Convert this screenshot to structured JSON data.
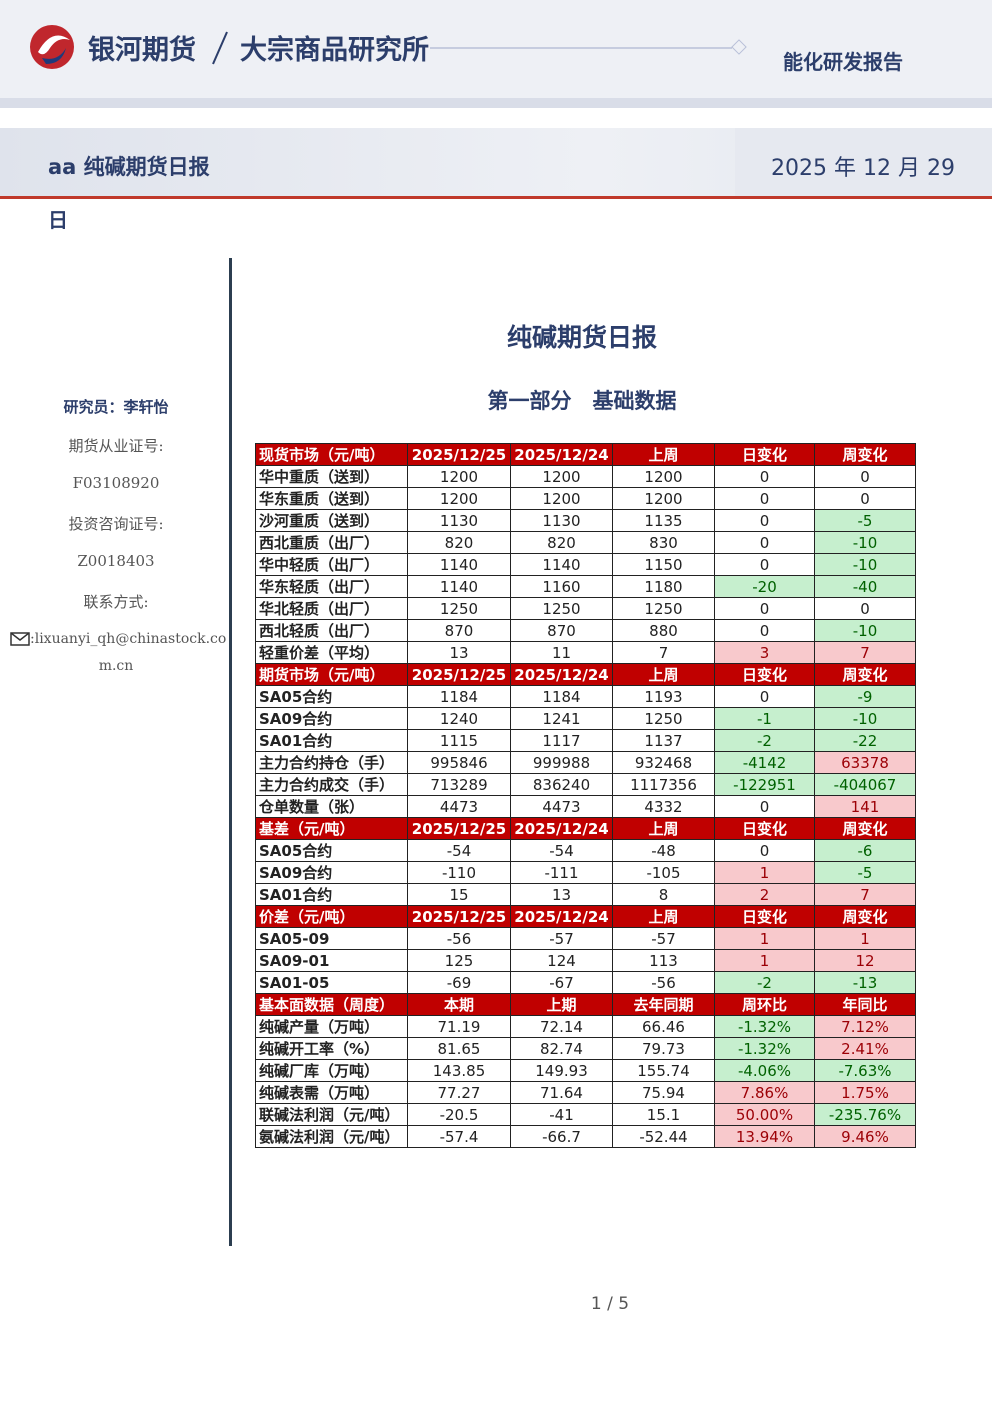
{
  "header": {
    "brand": "银河期货",
    "institute": "大宗商品研究所",
    "report_type": "能化研发报告"
  },
  "title_bar": {
    "left": "aa 纯碱期货日报",
    "right": "2025 年 12 月 29",
    "overflow": "日"
  },
  "sidebar": {
    "researcher": "研究员：李轩怡",
    "license_label": "期货从业证号:",
    "license": "F03108920",
    "consult_label": "投资咨询证号:",
    "consult": "Z0018403",
    "contact_label": "联系方式:",
    "email_line1": ":lixuanyi_qh@chinastock.co",
    "email_line2": "m.cn"
  },
  "main": {
    "title": "纯碱期货日报",
    "section": "第一部分　基础数据"
  },
  "table": {
    "sections": [
      {
        "header": [
          "现货市场（元/吨）",
          "2025/12/25",
          "2025/12/24",
          "上周",
          "日变化",
          "周变化"
        ],
        "rows": [
          [
            "华中重质（送到）",
            "1200",
            "1200",
            "1200",
            "0",
            "0"
          ],
          [
            "华东重质（送到）",
            "1200",
            "1200",
            "1200",
            "0",
            "0"
          ],
          [
            "沙河重质（送到）",
            "1130",
            "1130",
            "1135",
            "0",
            "-5"
          ],
          [
            "西北重质（出厂）",
            "820",
            "820",
            "830",
            "0",
            "-10"
          ],
          [
            "华中轻质（出厂）",
            "1140",
            "1140",
            "1150",
            "0",
            "-10"
          ],
          [
            "华东轻质（出厂）",
            "1140",
            "1160",
            "1180",
            "-20",
            "-40"
          ],
          [
            "华北轻质（出厂）",
            "1250",
            "1250",
            "1250",
            "0",
            "0"
          ],
          [
            "西北轻质（出厂）",
            "870",
            "870",
            "880",
            "0",
            "-10"
          ],
          [
            "轻重价差（平均）",
            "13",
            "11",
            "7",
            "3",
            "7"
          ]
        ]
      },
      {
        "header": [
          "期货市场（元/吨）",
          "2025/12/25",
          "2025/12/24",
          "上周",
          "日变化",
          "周变化"
        ],
        "rows": [
          [
            "SA05合约",
            "1184",
            "1184",
            "1193",
            "0",
            "-9"
          ],
          [
            "SA09合约",
            "1240",
            "1241",
            "1250",
            "-1",
            "-10"
          ],
          [
            "SA01合约",
            "1115",
            "1117",
            "1137",
            "-2",
            "-22"
          ],
          [
            "主力合约持仓（手）",
            "995846",
            "999988",
            "932468",
            "-4142",
            "63378"
          ],
          [
            "主力合约成交（手）",
            "713289",
            "836240",
            "1117356",
            "-122951",
            "-404067"
          ],
          [
            "仓单数量（张）",
            "4473",
            "4473",
            "4332",
            "0",
            "141"
          ]
        ]
      },
      {
        "header": [
          "基差（元/吨）",
          "2025/12/25",
          "2025/12/24",
          "上周",
          "日变化",
          "周变化"
        ],
        "rows": [
          [
            "SA05合约",
            "-54",
            "-54",
            "-48",
            "0",
            "-6"
          ],
          [
            "SA09合约",
            "-110",
            "-111",
            "-105",
            "1",
            "-5"
          ],
          [
            "SA01合约",
            "15",
            "13",
            "8",
            "2",
            "7"
          ]
        ]
      },
      {
        "header": [
          "价差（元/吨）",
          "2025/12/25",
          "2025/12/24",
          "上周",
          "日变化",
          "周变化"
        ],
        "rows": [
          [
            "SA05-09",
            "-56",
            "-57",
            "-57",
            "1",
            "1"
          ],
          [
            "SA09-01",
            "125",
            "124",
            "113",
            "1",
            "12"
          ],
          [
            "SA01-05",
            "-69",
            "-67",
            "-56",
            "-2",
            "-13"
          ]
        ]
      },
      {
        "header": [
          "基本面数据（周度）",
          "本期",
          "上期",
          "去年同期",
          "周环比",
          "年同比"
        ],
        "rows": [
          [
            "纯碱产量（万吨）",
            "71.19",
            "72.14",
            "66.46",
            "-1.32%",
            "7.12%"
          ],
          [
            "纯碱开工率（%）",
            "81.65",
            "82.74",
            "79.73",
            "-1.32%",
            "2.41%"
          ],
          [
            "纯碱厂库（万吨）",
            "143.85",
            "149.93",
            "155.74",
            "-4.06%",
            "-7.63%"
          ],
          [
            "纯碱表需（万吨）",
            "77.27",
            "71.64",
            "75.94",
            "7.86%",
            "1.75%"
          ],
          [
            "联碱法利润（元/吨）",
            "-20.5",
            "-41",
            "15.1",
            "50.00%",
            "-235.76%"
          ],
          [
            "氨碱法利润（元/吨）",
            "-57.4",
            "-66.7",
            "-52.44",
            "13.94%",
            "9.46%"
          ]
        ]
      }
    ]
  },
  "footer": {
    "page": "1 / 5"
  }
}
